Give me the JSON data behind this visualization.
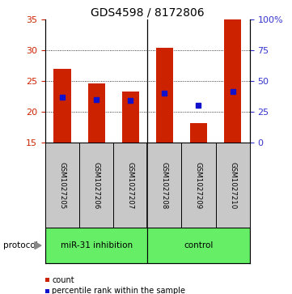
{
  "title": "GDS4598 / 8172806",
  "samples": [
    "GSM1027205",
    "GSM1027206",
    "GSM1027207",
    "GSM1027208",
    "GSM1027209",
    "GSM1027210"
  ],
  "bar_bottom": 15,
  "bar_tops": [
    27.0,
    24.6,
    23.3,
    30.3,
    18.2,
    35.0
  ],
  "blue_y_left": [
    22.3,
    22.0,
    21.8,
    23.0,
    21.1,
    23.3
  ],
  "ylim_left": [
    15,
    35
  ],
  "ylim_right": [
    0,
    100
  ],
  "yticks_left": [
    15,
    20,
    25,
    30,
    35
  ],
  "yticks_right": [
    0,
    25,
    50,
    75,
    100
  ],
  "yticklabels_right": [
    "0",
    "25",
    "50",
    "75",
    "100%"
  ],
  "bar_color": "#CC2200",
  "blue_color": "#1111CC",
  "bar_width": 0.5,
  "sample_box_color": "#C8C8C8",
  "protocol_bg": "#66EE66",
  "left_axis_color": "#CC2200",
  "right_axis_color": "#3333CC",
  "grid_yticks": [
    20,
    25,
    30
  ],
  "group_split": 2.5,
  "miR_label": "miR-31 inhibition",
  "control_label": "control",
  "protocol_text": "protocol",
  "legend_count_label": "count",
  "legend_pct_label": "percentile rank within the sample",
  "title_fontsize": 10,
  "tick_fontsize": 8,
  "sample_fontsize": 6.2,
  "proto_fontsize": 7.5,
  "legend_fontsize": 7
}
